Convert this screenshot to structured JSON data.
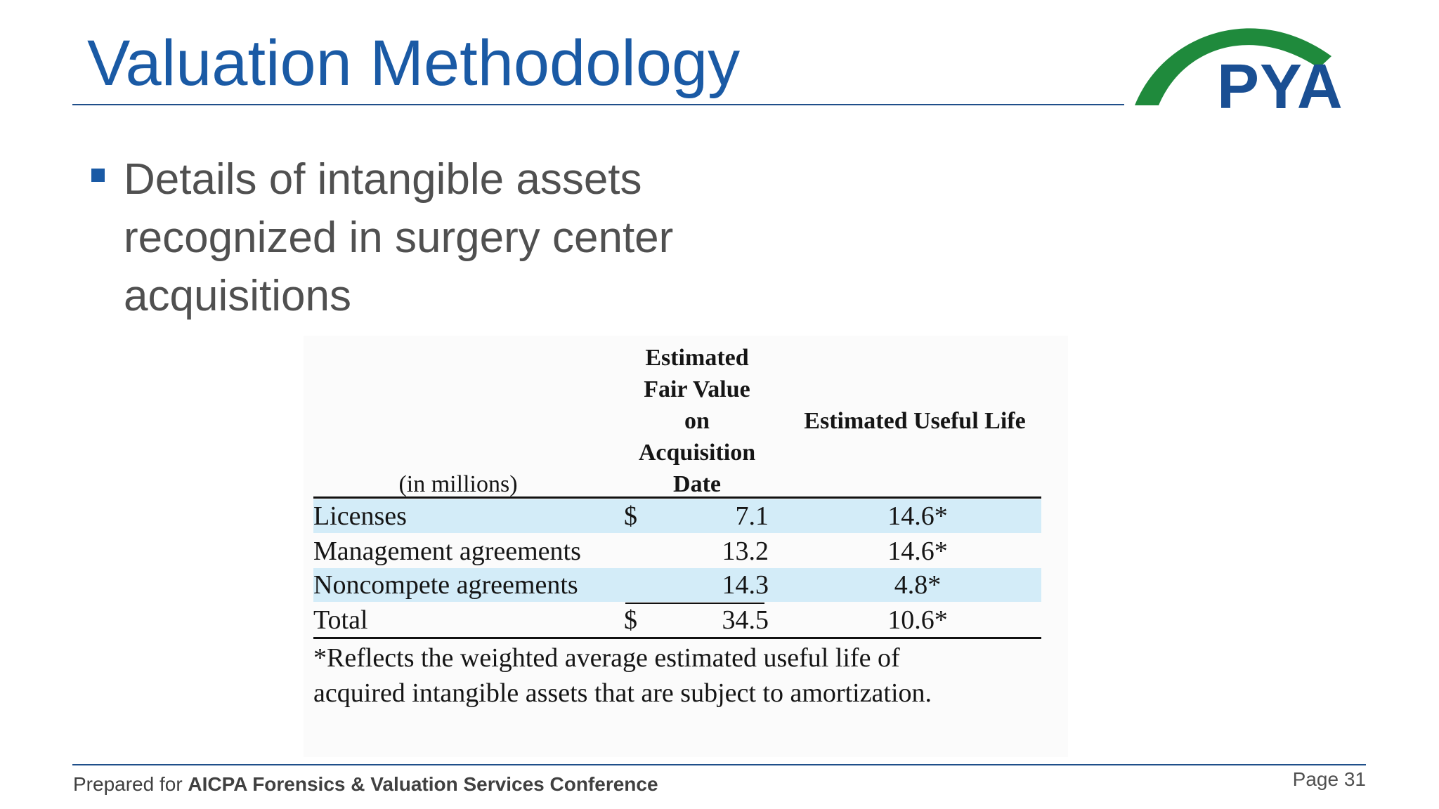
{
  "slide": {
    "title": "Valuation Methodology",
    "bullet": "Details of intangible assets recognized in surgery center acquisitions"
  },
  "logo": {
    "text": "PYA",
    "arc_color": "#1f8a3c",
    "text_color": "#1a4f93"
  },
  "table": {
    "units": "(in millions)",
    "col_fair_value": [
      "Estimated",
      "Fair Value",
      "on",
      "Acquisition",
      "Date"
    ],
    "col_life": "Estimated Useful Life",
    "rows": [
      {
        "label": "Licenses",
        "dollar": "$",
        "value": "7.1",
        "life": "14.6*"
      },
      {
        "label": "Management agreements",
        "dollar": "",
        "value": "13.2",
        "life": "14.6*"
      },
      {
        "label": "Noncompete agreements",
        "dollar": "",
        "value": "14.3",
        "life": "4.8*"
      },
      {
        "label": "Total",
        "dollar": "$",
        "value": "34.5",
        "life": "10.6*"
      }
    ],
    "footnote_line1": "*Reflects the weighted average estimated useful life of",
    "footnote_line2": "acquired intangible assets that are subject to amortization.",
    "highlight_color": "#d3ecf8"
  },
  "footer": {
    "prefix": "Prepared for ",
    "conference": "AICPA Forensics & Valuation Services Conference",
    "page": "Page 31"
  },
  "colors": {
    "title": "#1a5aa5",
    "rule": "#1f4f8a",
    "body_text": "#505050"
  }
}
